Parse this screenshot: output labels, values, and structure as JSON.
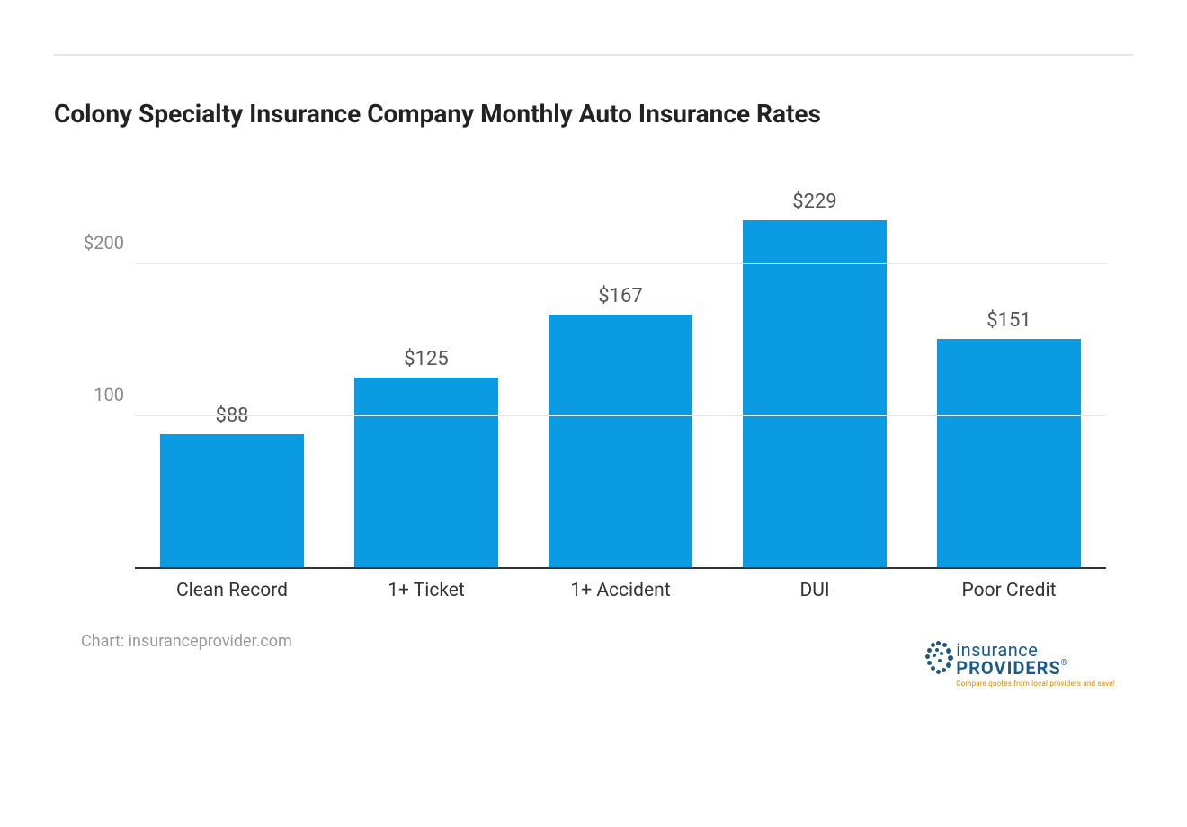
{
  "chart": {
    "type": "bar",
    "title": "Colony Specialty Insurance Company Monthly Auto Insurance Rates",
    "title_fontsize": 28,
    "title_color": "#222222",
    "categories": [
      "Clean Record",
      "1+ Ticket",
      "1+ Accident",
      "DUI",
      "Poor Credit"
    ],
    "values": [
      88,
      125,
      167,
      229,
      151
    ],
    "value_labels": [
      "$88",
      "$125",
      "$167",
      "$229",
      "$151"
    ],
    "bar_color": "#0b9be3",
    "bar_width_ratio": 0.74,
    "value_label_color": "#555555",
    "value_label_fontsize": 22,
    "x_label_color": "#333333",
    "x_label_fontsize": 21,
    "y_ticks": [
      {
        "value": 100,
        "label": "100"
      },
      {
        "value": 200,
        "label": "$200"
      }
    ],
    "y_tick_color": "#888888",
    "y_tick_fontsize": 20,
    "y_max": 260,
    "grid_color": "#e6e6e6",
    "axis_color": "#333333",
    "background_color": "#ffffff",
    "divider_color": "#e6e6e6"
  },
  "footer": {
    "attribution": "Chart: insuranceprovider.com",
    "attribution_color": "#999999",
    "attribution_fontsize": 18,
    "logo": {
      "line1": "insurance",
      "line2": "PROVIDERS",
      "registered": "®",
      "tagline": "Compare quotes from local providers and save!",
      "primary_color": "#1b5a8a",
      "tagline_color": "#d08a00"
    }
  }
}
